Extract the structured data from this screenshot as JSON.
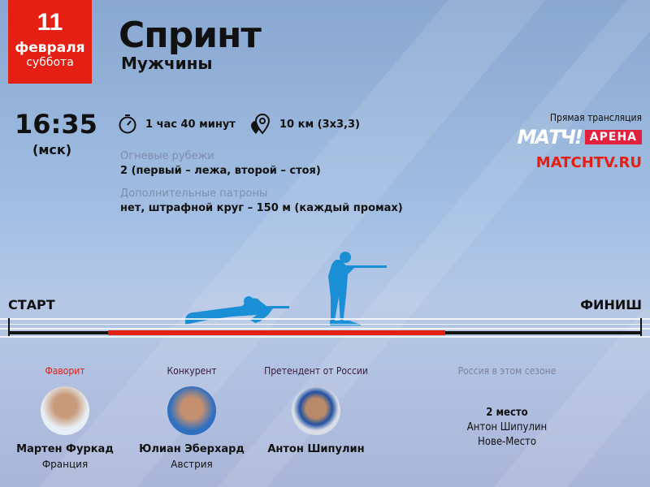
{
  "date": {
    "day": "11",
    "month": "февраля",
    "weekday": "суббота"
  },
  "event": {
    "title": "Спринт",
    "category": "Мужчины"
  },
  "start": {
    "time": "16:35",
    "timezone": "(мск)"
  },
  "details": {
    "duration": "1 час 40 минут",
    "distance": "10 км (3x3,3)",
    "shooting_label": "Огневые рубежи",
    "shooting_value": "2 (первый – лежа, второй – стоя)",
    "ammo_label": "Дополнительные патроны",
    "ammo_value": "нет, штрафной круг – 150 м (каждый промах)"
  },
  "broadcast": {
    "label": "Прямая трансляция",
    "channel_logo": "МАТЧ!",
    "channel_badge": "АРЕНА",
    "site": "MATCHTV.RU"
  },
  "track": {
    "start": "СТАРТ",
    "finish": "ФИНИШ"
  },
  "athletes": [
    {
      "role": "Фаворит",
      "name": "Мартен Фуркад",
      "country": "Франция",
      "role_color": "#e41f13"
    },
    {
      "role": "Конкурент",
      "name": "Юлиан Эберхард",
      "country": "Австрия",
      "role_color": "#3a1a3a"
    },
    {
      "role": "Претендент от России",
      "name": "Антон Шипулин",
      "country": "",
      "role_color": "#3a1a3a"
    }
  ],
  "season": {
    "label": "Россия в этом сезоне",
    "place": "2 место",
    "athlete": "Антон Шипулин",
    "venue": "Нове-Место"
  },
  "colors": {
    "accent": "#e41f13",
    "silhouette": "#1a8fd6"
  }
}
